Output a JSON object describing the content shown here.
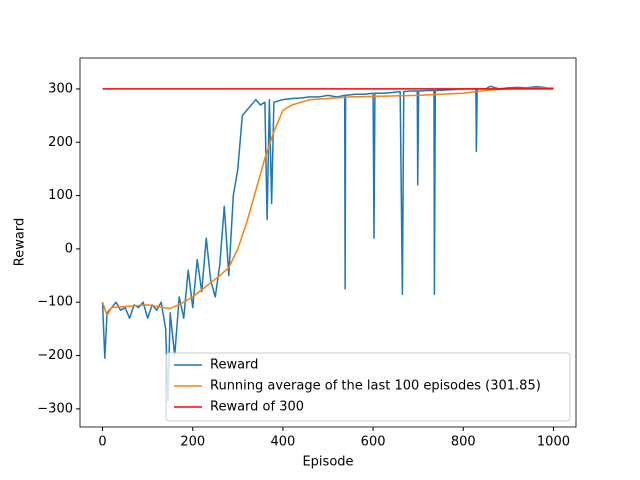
{
  "chart_data": {
    "type": "line",
    "xlabel": "Episode",
    "ylabel": "Reward",
    "xlim": [
      -50,
      1050
    ],
    "ylim": [
      -334,
      358
    ],
    "xticks": [
      0,
      200,
      400,
      600,
      800,
      1000
    ],
    "yticks": [
      {
        "value": -300,
        "label": "−300"
      },
      {
        "value": -200,
        "label": "−200"
      },
      {
        "value": -100,
        "label": "−100"
      },
      0,
      100,
      200,
      300
    ],
    "legend": "lower right",
    "series": [
      {
        "name": "Reward",
        "color": "#1f77b4",
        "x": [
          0,
          5,
          10,
          20,
          30,
          40,
          50,
          60,
          70,
          80,
          90,
          100,
          110,
          120,
          130,
          140,
          145,
          150,
          160,
          170,
          180,
          190,
          200,
          210,
          220,
          230,
          240,
          250,
          260,
          270,
          280,
          290,
          300,
          310,
          320,
          330,
          340,
          350,
          360,
          365,
          370,
          375,
          380,
          400,
          420,
          440,
          460,
          480,
          500,
          520,
          537,
          538,
          539,
          560,
          580,
          600,
          602,
          604,
          620,
          640,
          660,
          665,
          668,
          680,
          698,
          699,
          701,
          720,
          735,
          736,
          738,
          760,
          780,
          800,
          828,
          829,
          831,
          850,
          860,
          880,
          900,
          920,
          940,
          960,
          980,
          1000
        ],
        "values": [
          -100,
          -205,
          -120,
          -110,
          -100,
          -115,
          -110,
          -130,
          -105,
          -110,
          -100,
          -130,
          -105,
          -115,
          -100,
          -150,
          -285,
          -120,
          -200,
          -90,
          -130,
          -40,
          -110,
          -20,
          -80,
          20,
          -60,
          -90,
          -30,
          80,
          -50,
          100,
          150,
          250,
          260,
          270,
          280,
          270,
          275,
          55,
          280,
          85,
          275,
          280,
          282,
          283,
          285,
          285,
          288,
          285,
          288,
          -75,
          288,
          290,
          290,
          292,
          20,
          292,
          292,
          293,
          295,
          -85,
          295,
          296,
          296,
          120,
          296,
          297,
          297,
          -85,
          297,
          298,
          299,
          300,
          300,
          183,
          300,
          300,
          305,
          300,
          302,
          303,
          302,
          304,
          303,
          300
        ]
      },
      {
        "name": "Running average of the last 100 episodes (301.85)",
        "color": "#ff7f0e",
        "x": [
          0,
          10,
          20,
          50,
          100,
          150,
          180,
          200,
          230,
          260,
          280,
          300,
          320,
          340,
          360,
          380,
          400,
          420,
          440,
          460,
          500,
          550,
          600,
          650,
          700,
          750,
          800,
          850,
          900,
          950,
          1000
        ],
        "values": [
          -100,
          -125,
          -110,
          -108,
          -105,
          -112,
          -100,
          -90,
          -70,
          -50,
          -35,
          0,
          50,
          110,
          170,
          220,
          260,
          270,
          275,
          280,
          282,
          285,
          286,
          287,
          288,
          290,
          292,
          297,
          300,
          301,
          302
        ]
      },
      {
        "name": "Reward of 300",
        "color": "#ff0000",
        "x": [
          0,
          1000
        ],
        "values": [
          300,
          300
        ]
      }
    ]
  }
}
